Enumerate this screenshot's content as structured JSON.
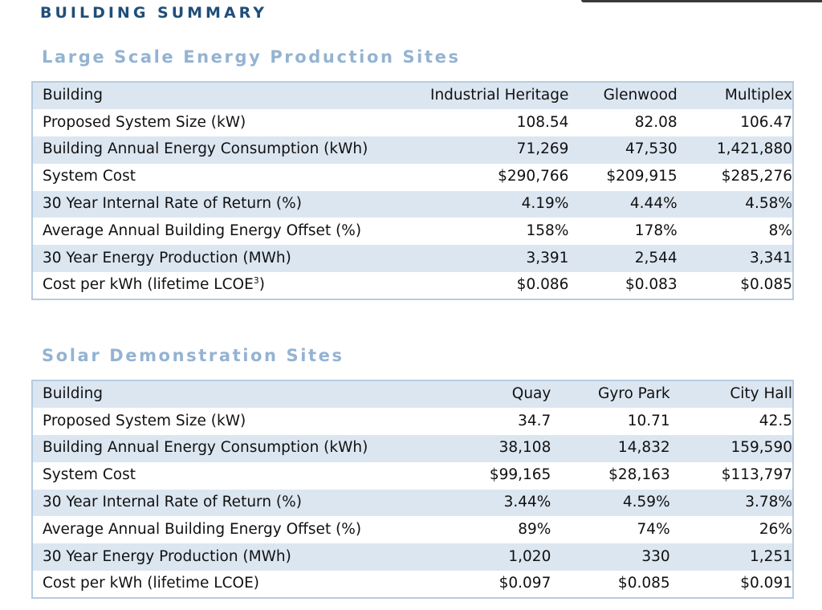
{
  "page_heading": "BUILDING SUMMARY",
  "sections": [
    {
      "title": "Large Scale Energy Production Sites",
      "columns": [
        "Building",
        "Industrial Heritage",
        "Glenwood",
        "Multiplex"
      ],
      "rows": [
        {
          "label": "Proposed System Size (kW)",
          "values": [
            "108.54",
            "82.08",
            "106.47"
          ]
        },
        {
          "label": "Building Annual Energy Consumption (kWh)",
          "values": [
            "71,269",
            "47,530",
            "1,421,880"
          ]
        },
        {
          "label": "System Cost",
          "values": [
            "$290,766",
            "$209,915",
            "$285,276"
          ]
        },
        {
          "label": "30 Year Internal Rate of Return (%)",
          "values": [
            "4.19%",
            "4.44%",
            "4.58%"
          ]
        },
        {
          "label": "Average Annual Building Energy Offset (%)",
          "values": [
            "158%",
            "178%",
            "8%"
          ]
        },
        {
          "label": "30 Year Energy Production (MWh)",
          "values": [
            "3,391",
            "2,544",
            "3,341"
          ]
        },
        {
          "label": "Cost per kWh (lifetime LCOE",
          "label_sup": "3",
          "label_suffix": ")",
          "values": [
            "$0.086",
            "$0.083",
            "$0.085"
          ]
        }
      ]
    },
    {
      "title": "Solar Demonstration Sites",
      "columns": [
        "Building",
        "Quay",
        "Gyro Park",
        "City Hall"
      ],
      "rows": [
        {
          "label": "Proposed System Size (kW)",
          "values": [
            "34.7",
            "10.71",
            "42.5"
          ]
        },
        {
          "label": "Building Annual Energy Consumption (kWh)",
          "values": [
            "38,108",
            "14,832",
            "159,590"
          ]
        },
        {
          "label": "System Cost",
          "values": [
            "$99,165",
            "$28,163",
            "$113,797"
          ]
        },
        {
          "label": "30 Year Internal Rate of Return (%)",
          "values": [
            "3.44%",
            "4.59%",
            "3.78%"
          ]
        },
        {
          "label": "Average Annual Building Energy Offset (%)",
          "values": [
            "89%",
            "74%",
            "26%"
          ]
        },
        {
          "label": "30 Year Energy Production (MWh)",
          "values": [
            "1,020",
            "330",
            "1,251"
          ]
        },
        {
          "label": "Cost per kWh (lifetime LCOE)",
          "values": [
            "$0.097",
            "$0.085",
            "$0.091"
          ]
        }
      ]
    }
  ]
}
